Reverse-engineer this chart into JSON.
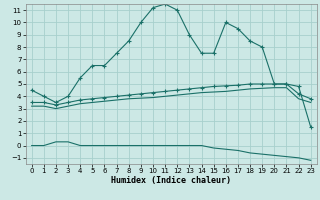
{
  "xlabel": "Humidex (Indice chaleur)",
  "xlim": [
    -0.5,
    23.5
  ],
  "ylim": [
    -1.5,
    11.5
  ],
  "xticks": [
    0,
    1,
    2,
    3,
    4,
    5,
    6,
    7,
    8,
    9,
    10,
    11,
    12,
    13,
    14,
    15,
    16,
    17,
    18,
    19,
    20,
    21,
    22,
    23
  ],
  "yticks": [
    -1,
    0,
    1,
    2,
    3,
    4,
    5,
    6,
    7,
    8,
    9,
    10,
    11
  ],
  "bg": "#cce8e5",
  "grid_color": "#a8d0cc",
  "lc": "#1a7068",
  "c1y": [
    4.5,
    4.0,
    3.5,
    4.0,
    5.5,
    6.5,
    6.5,
    7.5,
    8.5,
    10.0,
    11.2,
    11.5,
    11.0,
    9.0,
    7.5,
    7.5,
    10.0,
    9.5,
    8.5,
    8.0,
    5.0,
    5.0,
    4.8,
    1.5
  ],
  "c2y": [
    3.5,
    3.5,
    3.3,
    3.5,
    3.7,
    3.8,
    3.9,
    4.0,
    4.1,
    4.2,
    4.3,
    4.4,
    4.5,
    4.6,
    4.7,
    4.8,
    4.85,
    4.9,
    5.0,
    5.0,
    5.0,
    5.0,
    4.2,
    3.8
  ],
  "c3y": [
    3.2,
    3.2,
    3.0,
    3.2,
    3.4,
    3.5,
    3.6,
    3.7,
    3.8,
    3.85,
    3.9,
    4.0,
    4.1,
    4.2,
    4.3,
    4.35,
    4.4,
    4.5,
    4.6,
    4.65,
    4.7,
    4.7,
    3.8,
    3.5
  ],
  "c4y": [
    0.0,
    0.0,
    0.3,
    0.3,
    0.0,
    0.0,
    0.0,
    0.0,
    0.0,
    0.0,
    0.0,
    0.0,
    0.0,
    0.0,
    0.0,
    -0.2,
    -0.3,
    -0.4,
    -0.6,
    -0.7,
    -0.8,
    -0.9,
    -1.0,
    -1.2
  ]
}
